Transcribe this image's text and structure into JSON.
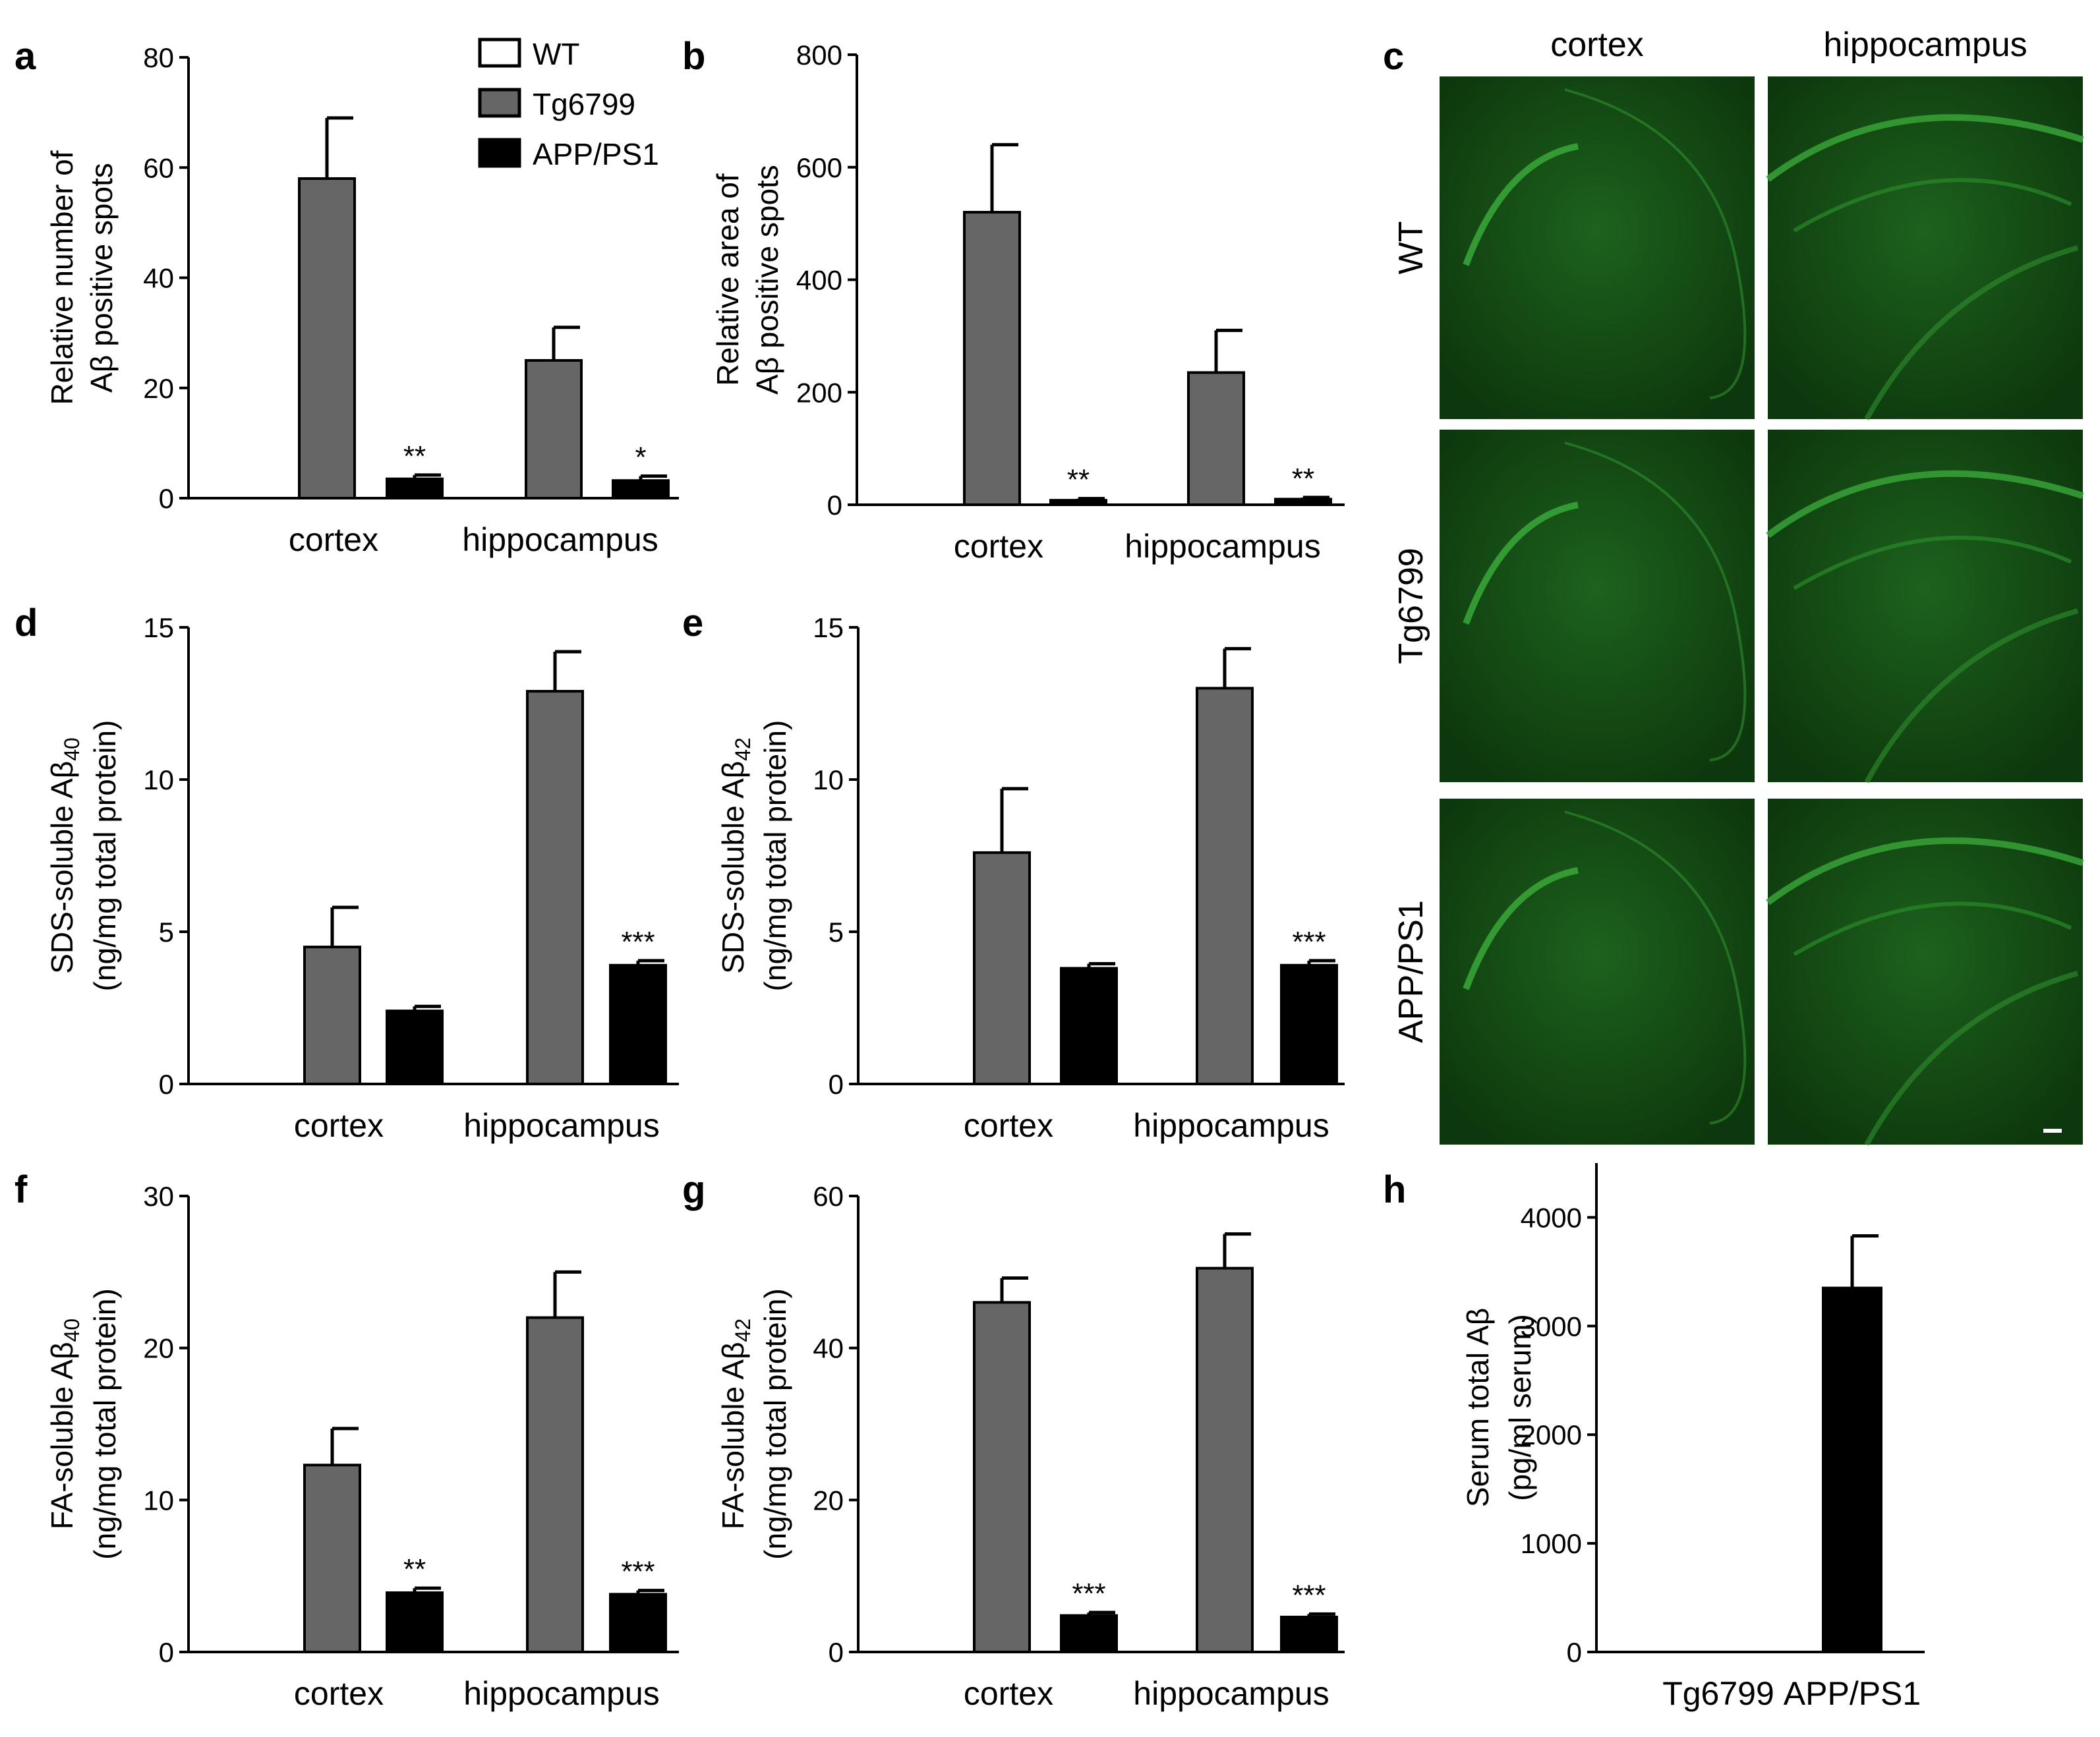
{
  "colors": {
    "WT": "#ffffff",
    "Tg6799": "#666666",
    "APP/PS1": "#000000",
    "fluorescence": "#3aa83a"
  },
  "legend": {
    "placement": "top-left panel a",
    "items": [
      {
        "name": "WT",
        "color": "#ffffff"
      },
      {
        "name": "Tg6799",
        "color": "#666666"
      },
      {
        "name": "APP/PS1",
        "color": "#000000"
      }
    ]
  },
  "micrograph": {
    "letter": "c",
    "columns": [
      "cortex",
      "hippocampus"
    ],
    "rows": [
      "WT",
      "Tg6799",
      "APP/PS1"
    ],
    "stain_color": "#3aa83a"
  },
  "chart_data": [
    {
      "id": "a",
      "letter": "a",
      "type": "bar",
      "categories": [
        "cortex",
        "hippocampus"
      ],
      "series": [
        {
          "name": "WT",
          "values": [
            0,
            0
          ],
          "errors": [
            0,
            0
          ]
        },
        {
          "name": "Tg6799",
          "values": [
            58,
            25
          ],
          "errors": [
            11,
            6
          ]
        },
        {
          "name": "APP/PS1",
          "values": [
            3.5,
            3.2
          ],
          "errors": [
            0.7,
            0.8
          ]
        }
      ],
      "ylabel_lines": [
        "Relative number of",
        "Aβ positive spots"
      ],
      "ylim": [
        0,
        80
      ],
      "yticks": [
        0,
        20,
        40,
        60,
        80
      ],
      "annotations": [
        {
          "series": "APP/PS1",
          "category": "cortex",
          "text": "**"
        },
        {
          "series": "APP/PS1",
          "category": "hippocampus",
          "text": "*"
        }
      ],
      "grid": false
    },
    {
      "id": "b",
      "letter": "b",
      "type": "bar",
      "categories": [
        "cortex",
        "hippocampus"
      ],
      "series": [
        {
          "name": "WT",
          "values": [
            0,
            0
          ],
          "errors": [
            0,
            0
          ]
        },
        {
          "name": "Tg6799",
          "values": [
            520,
            235
          ],
          "errors": [
            120,
            75
          ]
        },
        {
          "name": "APP/PS1",
          "values": [
            8,
            10
          ],
          "errors": [
            3,
            3
          ]
        }
      ],
      "ylabel_lines": [
        "Relative area of",
        "Aβ positive spots"
      ],
      "ylim": [
        0,
        800
      ],
      "yticks": [
        0,
        200,
        400,
        600,
        800
      ],
      "annotations": [
        {
          "series": "APP/PS1",
          "category": "cortex",
          "text": "**"
        },
        {
          "series": "APP/PS1",
          "category": "hippocampus",
          "text": "**"
        }
      ],
      "grid": false
    },
    {
      "id": "d",
      "letter": "d",
      "type": "bar",
      "categories": [
        "cortex",
        "hippocampus"
      ],
      "series": [
        {
          "name": "WT",
          "values": [
            0,
            0
          ],
          "errors": [
            0,
            0
          ]
        },
        {
          "name": "Tg6799",
          "values": [
            4.5,
            12.9
          ],
          "errors": [
            1.3,
            1.3
          ]
        },
        {
          "name": "APP/PS1",
          "values": [
            2.4,
            3.9
          ],
          "errors": [
            0.15,
            0.15
          ]
        }
      ],
      "ylabel_lines": [
        "SDS-soluble Aβ40",
        "(ng/mg total protein)"
      ],
      "ylim": [
        0,
        15
      ],
      "yticks": [
        0,
        5,
        10,
        15
      ],
      "annotations": [
        {
          "series": "APP/PS1",
          "category": "hippocampus",
          "text": "***"
        }
      ],
      "grid": false
    },
    {
      "id": "e",
      "letter": "e",
      "type": "bar",
      "categories": [
        "cortex",
        "hippocampus"
      ],
      "series": [
        {
          "name": "WT",
          "values": [
            0,
            0
          ],
          "errors": [
            0,
            0
          ]
        },
        {
          "name": "Tg6799",
          "values": [
            7.6,
            13.0
          ],
          "errors": [
            2.1,
            1.3
          ]
        },
        {
          "name": "APP/PS1",
          "values": [
            3.8,
            3.9
          ],
          "errors": [
            0.15,
            0.15
          ]
        }
      ],
      "ylabel_lines": [
        "SDS-soluble Aβ42",
        "(ng/mg total protein)"
      ],
      "ylim": [
        0,
        15
      ],
      "yticks": [
        0,
        5,
        10,
        15
      ],
      "annotations": [
        {
          "series": "APP/PS1",
          "category": "hippocampus",
          "text": "***"
        }
      ],
      "grid": false
    },
    {
      "id": "f",
      "letter": "f",
      "type": "bar",
      "categories": [
        "cortex",
        "hippocampus"
      ],
      "series": [
        {
          "name": "WT",
          "values": [
            0,
            0
          ],
          "errors": [
            0,
            0
          ]
        },
        {
          "name": "Tg6799",
          "values": [
            12.3,
            22.0
          ],
          "errors": [
            2.4,
            3.0
          ]
        },
        {
          "name": "APP/PS1",
          "values": [
            3.9,
            3.8
          ],
          "errors": [
            0.3,
            0.25
          ]
        }
      ],
      "ylabel_lines": [
        "FA-soluble Aβ40",
        "(ng/mg total protein)"
      ],
      "ylim": [
        0,
        30
      ],
      "yticks": [
        0,
        10,
        20,
        30
      ],
      "annotations": [
        {
          "series": "APP/PS1",
          "category": "cortex",
          "text": "**"
        },
        {
          "series": "APP/PS1",
          "category": "hippocampus",
          "text": "***"
        }
      ],
      "grid": false
    },
    {
      "id": "g",
      "letter": "g",
      "type": "bar",
      "categories": [
        "cortex",
        "hippocampus"
      ],
      "series": [
        {
          "name": "WT",
          "values": [
            0,
            0
          ],
          "errors": [
            0,
            0
          ]
        },
        {
          "name": "Tg6799",
          "values": [
            46,
            50.5
          ],
          "errors": [
            3.2,
            4.5
          ]
        },
        {
          "name": "APP/PS1",
          "values": [
            4.8,
            4.6
          ],
          "errors": [
            0.4,
            0.4
          ]
        }
      ],
      "ylabel_lines": [
        "FA-soluble Aβ42",
        "(ng/mg total protein)"
      ],
      "ylim": [
        0,
        60
      ],
      "yticks": [
        0,
        20,
        40,
        60
      ],
      "annotations": [
        {
          "series": "APP/PS1",
          "category": "cortex",
          "text": "***"
        },
        {
          "series": "APP/PS1",
          "category": "hippocampus",
          "text": "***"
        }
      ],
      "grid": false
    },
    {
      "id": "h",
      "letter": "h",
      "type": "bar",
      "categories": [
        "Tg6799",
        "APP/PS1"
      ],
      "values": [
        0,
        3350
      ],
      "errors": [
        0,
        480
      ],
      "bar_color": "#000000",
      "ylabel_lines": [
        "Serum total Aβ",
        "(pg/ml serum)"
      ],
      "ylim": [
        0,
        4500
      ],
      "yticks": [
        0,
        1000,
        2000,
        3000,
        4000
      ],
      "grid": false
    }
  ]
}
